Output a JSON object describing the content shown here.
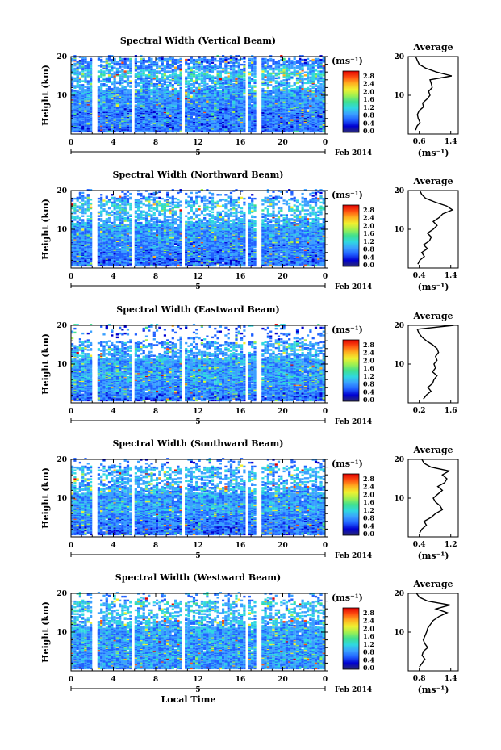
{
  "colors": {
    "axis": "#000000",
    "profile_line": "#000000",
    "background": "#ffffff",
    "colorbar": [
      "#2b2b6f",
      "#0000d0",
      "#2060ff",
      "#3aa0ff",
      "#30d8e0",
      "#40e090",
      "#a0f050",
      "#f0f030",
      "#ffb020",
      "#ff5010",
      "#e00000"
    ]
  },
  "shared": {
    "date_label": "Feb 2014",
    "day_label": "5",
    "x_axis_label": "Local Time",
    "x_ticks": [
      "0",
      "4",
      "8",
      "12",
      "16",
      "20",
      "0"
    ],
    "y_axis_label": "Height (km)",
    "y_ticks": [
      "20",
      "10"
    ],
    "colorbar_unit": "(ms⁻¹)",
    "colorbar_ticks": [
      "2.8",
      "2.4",
      "2.0",
      "1.6",
      "1.2",
      "0.8",
      "0.4",
      "0.0"
    ],
    "profile_title": "Average",
    "profile_xlabel": "(ms⁻¹)"
  },
  "chart_data": [
    {
      "type": "heatmap",
      "title": "Spectral Width (Vertical Beam)",
      "xlabel": "",
      "ylabel": "Height (km)",
      "xlim": [
        0,
        24
      ],
      "ylim": [
        0,
        20
      ],
      "colorbar": {
        "label": "(ms⁻¹)",
        "range": [
          0.0,
          2.8
        ]
      },
      "gaps_hours": [
        [
          0,
          0.0
        ],
        [
          2.0,
          2.4
        ],
        [
          5.7,
          5.9
        ],
        [
          10.5,
          10.7
        ],
        [
          13.8,
          13.9
        ],
        [
          16.4,
          16.6
        ],
        [
          17.4,
          18.0
        ]
      ],
      "profile": {
        "title": "Average",
        "xlabel": "(ms⁻¹)",
        "xticks": [
          "0.6",
          "1.4"
        ],
        "xlim": [
          0.45,
          1.6
        ],
        "heights": [
          1,
          2,
          3,
          4,
          5,
          6,
          7,
          8,
          9,
          10,
          11,
          12,
          13,
          14,
          15,
          16,
          17,
          18,
          19,
          20
        ],
        "values": [
          0.62,
          0.65,
          0.72,
          0.68,
          0.66,
          0.7,
          0.8,
          0.78,
          0.88,
          0.95,
          0.92,
          1.0,
          0.98,
          0.95,
          1.45,
          1.1,
          0.85,
          0.7,
          0.66,
          0.62
        ]
      }
    },
    {
      "type": "heatmap",
      "title": "Spectral Width (Northward Beam)",
      "xlabel": "",
      "ylabel": "Height (km)",
      "xlim": [
        0,
        24
      ],
      "ylim": [
        0,
        20
      ],
      "colorbar": {
        "label": "(ms⁻¹)",
        "range": [
          0.0,
          2.8
        ]
      },
      "gaps_hours": [
        [
          2.0,
          2.4
        ],
        [
          5.7,
          5.9
        ],
        [
          10.5,
          10.7
        ],
        [
          16.4,
          16.6
        ],
        [
          17.4,
          18.0
        ]
      ],
      "profile": {
        "title": "Average",
        "xlabel": "(ms⁻¹)",
        "xticks": [
          "0.4",
          "1.4"
        ],
        "xlim": [
          0.3,
          1.6
        ],
        "heights": [
          1,
          2,
          3,
          4,
          5,
          6,
          7,
          8,
          9,
          10,
          11,
          12,
          13,
          14,
          15,
          16,
          17,
          18,
          19,
          20
        ],
        "values": [
          0.55,
          0.6,
          0.72,
          0.65,
          0.8,
          0.7,
          0.85,
          0.9,
          0.8,
          0.95,
          1.05,
          0.95,
          1.1,
          1.2,
          1.45,
          1.3,
          1.0,
          0.75,
          0.65,
          0.6
        ]
      }
    },
    {
      "type": "heatmap",
      "title": "Spectral Width (Eastward Beam)",
      "xlabel": "",
      "ylabel": "Height (km)",
      "xlim": [
        0,
        24
      ],
      "ylim": [
        0,
        20
      ],
      "colorbar": {
        "label": "(ms⁻¹)",
        "range": [
          0.0,
          2.8
        ]
      },
      "gaps_hours": [
        [
          2.0,
          2.4
        ],
        [
          5.7,
          5.9
        ],
        [
          10.5,
          10.7
        ],
        [
          16.4,
          16.6
        ],
        [
          17.4,
          18.0
        ]
      ],
      "profile": {
        "title": "Average",
        "xlabel": "",
        "xticks": [
          "0.2",
          "1.6"
        ],
        "xlim": [
          0.1,
          1.75
        ],
        "heights": [
          1,
          2,
          3,
          4,
          5,
          6,
          7,
          8,
          9,
          10,
          11,
          12,
          13,
          14,
          15,
          16,
          17,
          18,
          19,
          20
        ],
        "values": [
          0.6,
          0.7,
          0.85,
          0.75,
          0.9,
          0.95,
          1.05,
          0.9,
          1.0,
          0.95,
          1.05,
          1.0,
          1.1,
          1.05,
          0.9,
          0.7,
          0.55,
          0.45,
          0.4,
          1.6
        ]
      }
    },
    {
      "type": "heatmap",
      "title": "Spectral Width (Southward Beam)",
      "xlabel": "",
      "ylabel": "Height (km)",
      "xlim": [
        0,
        24
      ],
      "ylim": [
        0,
        20
      ],
      "colorbar": {
        "label": "(ms⁻¹)",
        "range": [
          0.0,
          2.8
        ]
      },
      "gaps_hours": [
        [
          2.0,
          2.4
        ],
        [
          5.7,
          5.9
        ],
        [
          10.5,
          10.7
        ],
        [
          16.4,
          16.6
        ],
        [
          17.4,
          18.0
        ]
      ],
      "profile": {
        "title": "Average",
        "xlabel": "(ms⁻¹)",
        "xticks": [
          "0.4",
          "1.2"
        ],
        "xlim": [
          0.3,
          1.4
        ],
        "heights": [
          1,
          2,
          3,
          4,
          5,
          6,
          7,
          8,
          9,
          10,
          11,
          12,
          13,
          14,
          15,
          16,
          17,
          18,
          19,
          20
        ],
        "values": [
          0.55,
          0.6,
          0.7,
          0.65,
          0.8,
          0.9,
          1.05,
          1.0,
          0.9,
          0.85,
          0.95,
          1.05,
          0.95,
          1.1,
          1.15,
          1.05,
          1.2,
          0.8,
          0.65,
          0.6
        ]
      }
    },
    {
      "type": "heatmap",
      "title": "Spectral Width (Westward Beam)",
      "xlabel": "Local Time",
      "ylabel": "Height (km)",
      "xlim": [
        0,
        24
      ],
      "ylim": [
        0,
        20
      ],
      "colorbar": {
        "label": "(ms⁻¹)",
        "range": [
          0.0,
          2.8
        ]
      },
      "gaps_hours": [
        [
          2.0,
          2.4
        ],
        [
          5.7,
          5.9
        ],
        [
          10.5,
          10.7
        ],
        [
          16.4,
          16.6
        ],
        [
          17.4,
          18.0
        ]
      ],
      "profile": {
        "title": "Average",
        "xlabel": "(ms⁻¹)",
        "xticks": [
          "0.8",
          "1.4"
        ],
        "xlim": [
          0.65,
          1.55
        ],
        "heights": [
          1,
          2,
          3,
          4,
          5,
          6,
          7,
          8,
          9,
          10,
          11,
          12,
          13,
          14,
          15,
          16,
          17,
          18,
          19,
          20
        ],
        "values": [
          0.85,
          0.9,
          0.95,
          0.9,
          0.92,
          1.0,
          0.95,
          0.92,
          0.95,
          0.98,
          1.0,
          1.05,
          1.1,
          1.2,
          1.35,
          1.15,
          1.4,
          1.0,
          0.85,
          0.8
        ]
      }
    }
  ]
}
